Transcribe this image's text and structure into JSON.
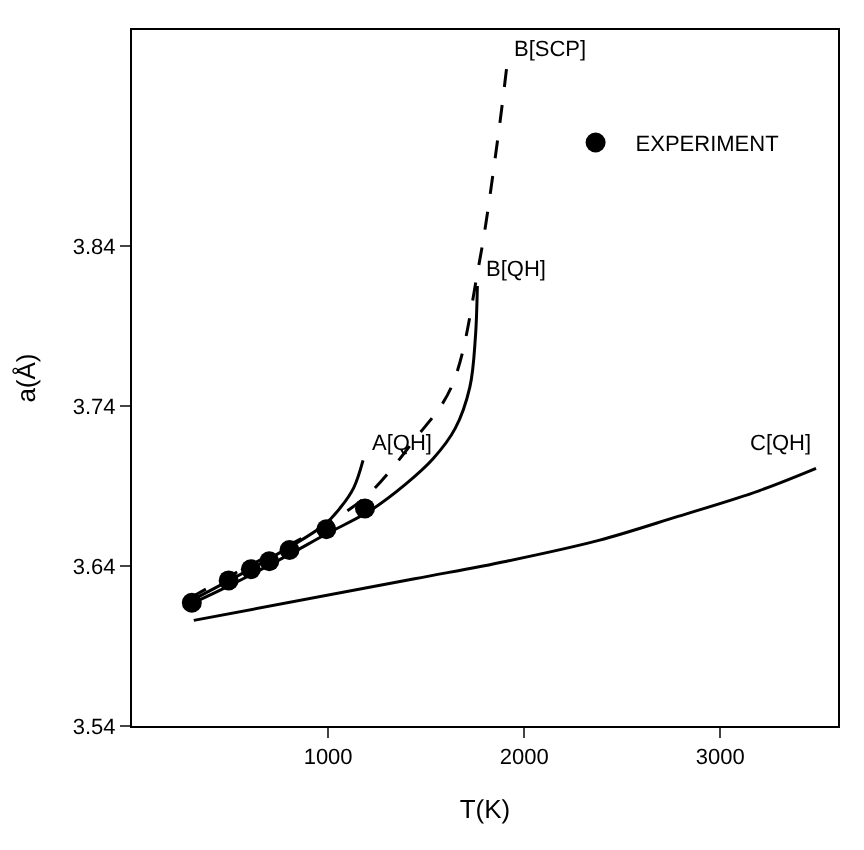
{
  "chart_data": {
    "type": "line",
    "xlabel": "T(K)",
    "ylabel": "a(Å)",
    "xlim": [
      0,
      3600
    ],
    "ylim": [
      3.54,
      3.975
    ],
    "xticks": [
      1000,
      2000,
      3000
    ],
    "yticks": [
      3.54,
      3.64,
      3.74,
      3.84
    ],
    "legend": "top right",
    "series": [
      {
        "name": "EXPERIMENT",
        "type": "scatter",
        "marker": "circle",
        "color": "#000000",
        "x": [
          305,
          493,
          606,
          700,
          803,
          991,
          1188
        ],
        "values": [
          3.617,
          3.631,
          3.638,
          3.643,
          3.65,
          3.663,
          3.676
        ]
      },
      {
        "name": "A[QH]",
        "line_style": "solid",
        "color": "#000000",
        "x": [
          296,
          972,
          1066,
          1131,
          1178
        ],
        "values": [
          3.618,
          3.665,
          3.677,
          3.689,
          3.706
        ]
      },
      {
        "name": "B[QH]",
        "line_style": "solid",
        "color": "#000000",
        "x": [
          296,
          502,
          784,
          991,
          1207,
          1394,
          1535,
          1648,
          1723,
          1751,
          1761
        ],
        "values": [
          3.616,
          3.628,
          3.646,
          3.66,
          3.674,
          3.691,
          3.707,
          3.726,
          3.752,
          3.783,
          3.815
        ]
      },
      {
        "name": "B[SCP]",
        "line_style": "dashed",
        "color": "#000000",
        "x": [
          296,
          502,
          784,
          991,
          1207,
          1441,
          1629,
          1770,
          1864,
          1911
        ],
        "values": [
          3.62,
          3.634,
          3.652,
          3.666,
          3.685,
          3.719,
          3.752,
          3.829,
          3.906,
          3.952
        ]
      },
      {
        "name": "C[QH]",
        "line_style": "solid",
        "color": "#000000",
        "x": [
          315,
          1441,
          1911,
          2380,
          2784,
          3197,
          3488
        ],
        "values": [
          3.606,
          3.632,
          3.643,
          3.656,
          3.671,
          3.687,
          3.701
        ]
      }
    ]
  }
}
